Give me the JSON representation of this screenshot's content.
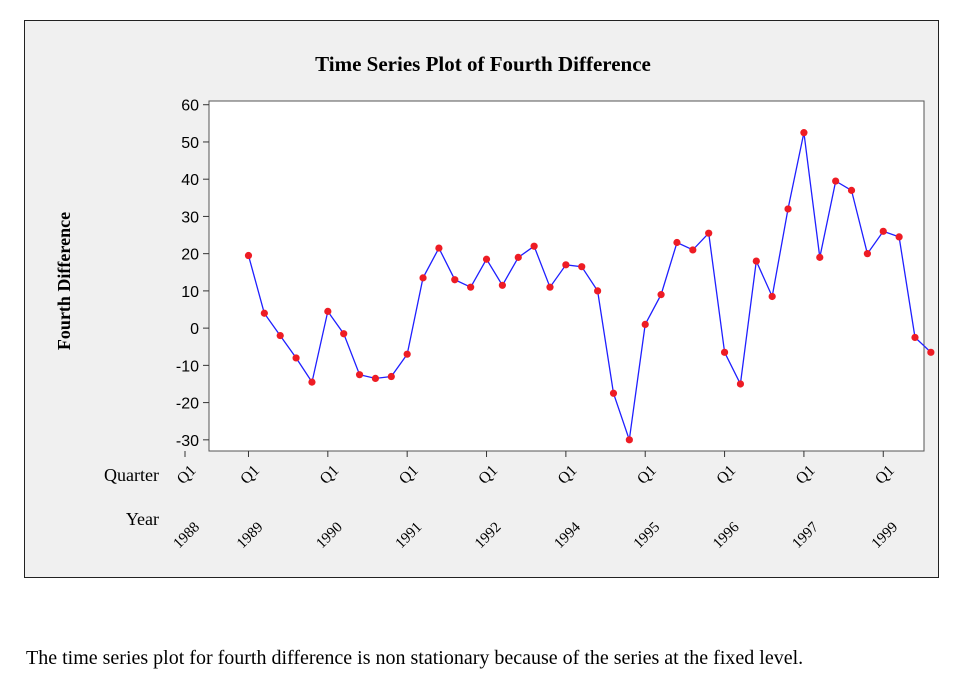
{
  "chart_data": {
    "type": "line",
    "title": "Time Series Plot of Fourth Difference",
    "ylabel": "Fourth Difference",
    "ylim": [
      -33,
      61
    ],
    "yticks": [
      60,
      50,
      40,
      30,
      20,
      10,
      0,
      -10,
      -20,
      -30
    ],
    "x_index_range": [
      1,
      47
    ],
    "x_axis_row_labels": [
      "Quarter",
      "Year"
    ],
    "x_ticks": [
      {
        "index": 1,
        "quarter": "Q1",
        "year": "1988"
      },
      {
        "index": 5,
        "quarter": "Q1",
        "year": "1989"
      },
      {
        "index": 10,
        "quarter": "Q1",
        "year": "1990"
      },
      {
        "index": 15,
        "quarter": "Q1",
        "year": "1991"
      },
      {
        "index": 20,
        "quarter": "Q1",
        "year": "1992"
      },
      {
        "index": 25,
        "quarter": "Q1",
        "year": "1994"
      },
      {
        "index": 30,
        "quarter": "Q1",
        "year": "1995"
      },
      {
        "index": 35,
        "quarter": "Q1",
        "year": "1996"
      },
      {
        "index": 40,
        "quarter": "Q1",
        "year": "1997"
      },
      {
        "index": 45,
        "quarter": "Q1",
        "year": "1999"
      }
    ],
    "series": [
      {
        "x": [
          5,
          6,
          7,
          8,
          9,
          10,
          11,
          12,
          13,
          14,
          15,
          16,
          17,
          18,
          19,
          20,
          21,
          22,
          23,
          24,
          25,
          26,
          27,
          28,
          29,
          30,
          31,
          32,
          33,
          34,
          35,
          36,
          37,
          38,
          39,
          40,
          41,
          42,
          43,
          44,
          45,
          46,
          47,
          48
        ],
        "values": [
          19.5,
          4,
          -2,
          -8,
          -14.5,
          4.5,
          -1.5,
          -12.5,
          -13.5,
          -13,
          -7,
          13.5,
          21.5,
          13,
          11,
          18.5,
          11.5,
          19,
          22,
          11,
          17,
          16.5,
          10,
          -17.5,
          -30,
          1,
          9,
          23,
          21,
          25.5,
          -6.5,
          -15,
          18,
          8.5,
          32,
          52.5,
          19,
          39.5,
          37,
          20,
          26,
          24.5,
          -2.5,
          -6.5
        ]
      }
    ],
    "colors": {
      "line": "#1f1fff",
      "marker": "#ee1c24",
      "plot_background": "#ffffff",
      "frame_background": "#f0f0f0"
    }
  },
  "caption": "The time series plot for fourth difference is non stationary because of the series at the fixed level."
}
